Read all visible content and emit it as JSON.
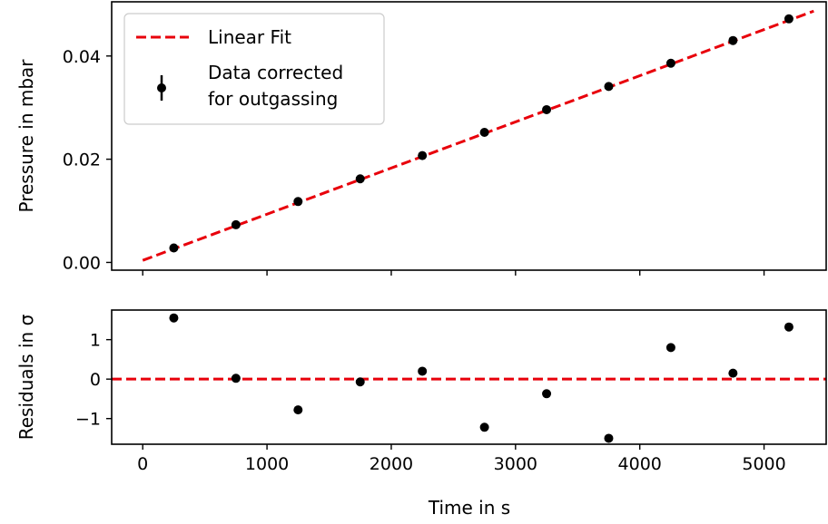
{
  "chart_data": [
    {
      "type": "scatter",
      "panel": "top",
      "title": "",
      "xlabel": "",
      "ylabel": "Pressure in mbar",
      "xlim": [
        -250,
        5500
      ],
      "ylim": [
        -0.0015,
        0.0505
      ],
      "yticks": [
        0.0,
        0.02,
        0.04
      ],
      "ytick_labels": [
        "0.00",
        "0.02",
        "0.04"
      ],
      "xticks": [
        0,
        1000,
        2000,
        3000,
        4000,
        5000
      ],
      "grid": false,
      "legend": {
        "placement": "top-left",
        "entries": [
          {
            "label": "Linear Fit",
            "style": "dashed-line",
            "color": "#e8000b"
          },
          {
            "label_lines": [
              "Data corrected",
              "for outgassing"
            ],
            "style": "errorbar-point",
            "color": "#000000"
          }
        ]
      },
      "series": [
        {
          "name": "Data corrected for outgassing",
          "kind": "points",
          "color": "#000000",
          "x": [
            250,
            750,
            1250,
            1750,
            2250,
            2750,
            3250,
            3750,
            4250,
            4750,
            5200
          ],
          "y": [
            0.0028,
            0.0073,
            0.0118,
            0.0162,
            0.0207,
            0.0252,
            0.0296,
            0.0341,
            0.0386,
            0.043,
            0.0472
          ]
        },
        {
          "name": "Linear Fit",
          "kind": "dashed-line",
          "color": "#e8000b",
          "x": [
            0,
            5400
          ],
          "y": [
            0.0004,
            0.0487
          ]
        }
      ]
    },
    {
      "type": "scatter",
      "panel": "bottom",
      "title": "",
      "xlabel": "Time in s",
      "ylabel": "Residuals in σ",
      "xlim": [
        -250,
        5500
      ],
      "ylim": [
        -1.65,
        1.75
      ],
      "yticks": [
        -1,
        0,
        1
      ],
      "ytick_labels": [
        "−1",
        "0",
        "1"
      ],
      "xticks": [
        0,
        1000,
        2000,
        3000,
        4000,
        5000
      ],
      "xtick_labels": [
        "0",
        "1000",
        "2000",
        "3000",
        "4000",
        "5000"
      ],
      "grid": false,
      "series": [
        {
          "name": "Residuals",
          "kind": "points",
          "color": "#000000",
          "x": [
            250,
            750,
            1250,
            1750,
            2250,
            2750,
            3250,
            3750,
            4250,
            4750,
            5200
          ],
          "y": [
            1.55,
            0.02,
            -0.78,
            -0.07,
            0.2,
            -1.22,
            -0.37,
            -1.5,
            0.8,
            0.15,
            1.32
          ]
        },
        {
          "name": "Zero line",
          "kind": "dashed-line",
          "color": "#e8000b",
          "x": [
            -250,
            5500
          ],
          "y": [
            0,
            0
          ]
        }
      ]
    }
  ]
}
